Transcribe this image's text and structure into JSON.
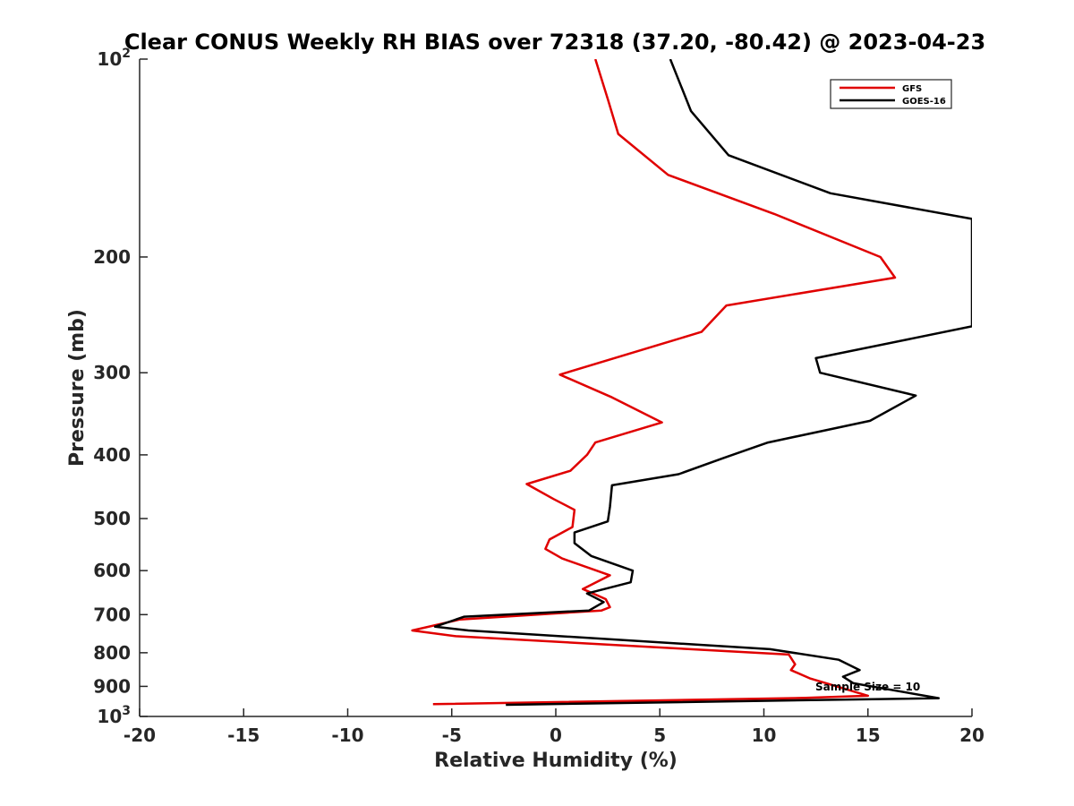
{
  "chart_data": {
    "type": "line",
    "title": "Clear CONUS Weekly RH BIAS over 72318 (37.20, -80.42) @ 2023-04-23",
    "xlabel": "Relative Humidity (%)",
    "ylabel": "Pressure (mb)",
    "xlim": [
      -20,
      20
    ],
    "ylim": [
      100,
      1000
    ],
    "y_scale": "log",
    "y_reversed": true,
    "x_ticks": [
      -20,
      -15,
      -10,
      -5,
      0,
      5,
      10,
      15,
      20
    ],
    "x_tick_labels": [
      "-20",
      "-15",
      "-10",
      "-5",
      "0",
      "5",
      "10",
      "15",
      "20"
    ],
    "y_ticks": [
      100,
      200,
      300,
      400,
      500,
      600,
      700,
      800,
      900,
      1000
    ],
    "y_tick_labels": [
      "",
      "200",
      "300",
      "400",
      "500",
      "600",
      "700",
      "800",
      "900",
      ""
    ],
    "y_tick_power_labels": [
      {
        "value": 100,
        "base": "10",
        "exponent": "2"
      },
      {
        "value": 1000,
        "base": "10",
        "exponent": "3"
      }
    ],
    "grid": false,
    "legend_position": "top-right",
    "annotation": "Sample Size = 10",
    "series": [
      {
        "name": "GFS",
        "color": "#e00000",
        "points": [
          [
            1.9,
            100
          ],
          [
            2.5,
            115
          ],
          [
            3.0,
            130
          ],
          [
            5.4,
            150
          ],
          [
            10.5,
            172
          ],
          [
            15.6,
            200
          ],
          [
            16.3,
            215
          ],
          [
            8.2,
            237
          ],
          [
            7.0,
            260
          ],
          [
            0.2,
            302
          ],
          [
            2.7,
            327
          ],
          [
            5.1,
            357
          ],
          [
            1.9,
            383
          ],
          [
            1.5,
            400
          ],
          [
            0.7,
            423
          ],
          [
            -1.4,
            443
          ],
          [
            -0.1,
            467
          ],
          [
            0.9,
            485
          ],
          [
            0.8,
            515
          ],
          [
            -0.3,
            538
          ],
          [
            -0.5,
            556
          ],
          [
            0.3,
            575
          ],
          [
            2.6,
            610
          ],
          [
            1.3,
            640
          ],
          [
            2.4,
            663
          ],
          [
            2.6,
            682
          ],
          [
            2.2,
            690
          ],
          [
            -4.6,
            712
          ],
          [
            -6.9,
            740
          ],
          [
            -4.8,
            755
          ],
          [
            11.2,
            805
          ],
          [
            11.5,
            833
          ],
          [
            11.3,
            850
          ],
          [
            12.2,
            875
          ],
          [
            15.0,
            930
          ],
          [
            12.0,
            937
          ],
          [
            -5.9,
            958
          ]
        ]
      },
      {
        "name": "GOES-16",
        "color": "#000000",
        "points": [
          [
            5.5,
            100
          ],
          [
            6.5,
            120
          ],
          [
            8.3,
            140
          ],
          [
            13.2,
            160
          ],
          [
            20.0,
            175
          ],
          [
            20.0,
            255
          ],
          [
            12.5,
            285
          ],
          [
            12.7,
            300
          ],
          [
            17.3,
            325
          ],
          [
            15.1,
            355
          ],
          [
            10.2,
            383
          ],
          [
            8.0,
            405
          ],
          [
            5.9,
            428
          ],
          [
            2.7,
            445
          ],
          [
            2.6,
            480
          ],
          [
            2.5,
            505
          ],
          [
            0.9,
            525
          ],
          [
            0.9,
            545
          ],
          [
            1.7,
            570
          ],
          [
            3.7,
            600
          ],
          [
            3.6,
            625
          ],
          [
            1.5,
            650
          ],
          [
            2.3,
            670
          ],
          [
            1.6,
            690
          ],
          [
            -4.4,
            705
          ],
          [
            -5.8,
            730
          ],
          [
            -4.2,
            740
          ],
          [
            10.3,
            790
          ],
          [
            13.6,
            820
          ],
          [
            14.6,
            850
          ],
          [
            13.8,
            870
          ],
          [
            14.3,
            890
          ],
          [
            18.4,
            938
          ],
          [
            -2.4,
            960
          ]
        ]
      }
    ]
  }
}
